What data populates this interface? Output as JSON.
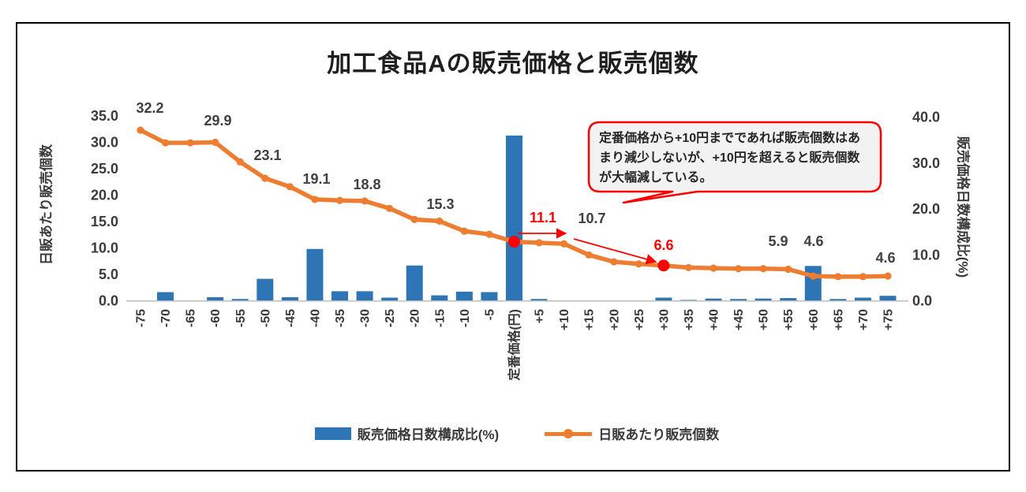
{
  "title": "加工食品Aの販売価格と販売個数",
  "left_axis": {
    "title": "日販あたり販売個数",
    "ticks": [
      "35.0",
      "30.0",
      "25.0",
      "20.0",
      "15.0",
      "10.0",
      "5.0",
      "0.0"
    ]
  },
  "right_axis": {
    "title": "販売価格日数構成比(%)",
    "ticks": [
      "40.0",
      "30.0",
      "20.0",
      "10.0",
      "0.0"
    ]
  },
  "legend": [
    {
      "label": "販売価格日数構成比(%)",
      "type": "bar",
      "color": "#2E75B6"
    },
    {
      "label": "日販あたり販売個数",
      "type": "line",
      "color": "#ED7D31"
    }
  ],
  "annotation": {
    "text": "定番価格から+10円までであれば販売個数はあまり減少しないが、+10円を超えると販売個数が大幅減している。",
    "border_color": "#FF0000",
    "fill": "#F2F2F2"
  },
  "colors": {
    "bar": "#2E75B6",
    "line": "#ED7D31",
    "highlight": "#FF0000",
    "label": "#404040",
    "axis_line": "#BFBFBF"
  },
  "chart_data": {
    "type": "combo",
    "categories": [
      "-75",
      "-70",
      "-65",
      "-60",
      "-55",
      "-50",
      "-45",
      "-40",
      "-35",
      "-30",
      "-25",
      "-20",
      "-15",
      "-10",
      "-5",
      "定番価格(円)",
      "+5",
      "+10",
      "+15",
      "+20",
      "+25",
      "+30",
      "+35",
      "+40",
      "+45",
      "+50",
      "+55",
      "+60",
      "+65",
      "+70",
      "+75"
    ],
    "series": [
      {
        "name": "販売価格日数構成比(%)",
        "type": "bar",
        "axis": "right",
        "color": "#2E75B6",
        "values": [
          0,
          1.8,
          0,
          0.7,
          0.3,
          4.7,
          0.7,
          11.2,
          2.0,
          2.0,
          0.6,
          7.6,
          1.1,
          1.9,
          1.8,
          35.9,
          0.3,
          0,
          0,
          0,
          0,
          0.6,
          0.1,
          0.4,
          0.3,
          0.4,
          0.5,
          7.5,
          0.3,
          0.6,
          1.0
        ]
      },
      {
        "name": "日販あたり販売個数",
        "type": "line",
        "axis": "left",
        "color": "#ED7D31",
        "values": [
          32.2,
          29.8,
          29.8,
          29.9,
          26.2,
          23.1,
          21.5,
          19.1,
          18.9,
          18.8,
          17.4,
          15.3,
          15.0,
          13.1,
          12.5,
          11.1,
          10.9,
          10.7,
          8.6,
          7.3,
          6.9,
          6.6,
          6.2,
          6.1,
          6.0,
          6.0,
          5.9,
          4.6,
          4.5,
          4.5,
          4.6
        ]
      }
    ],
    "data_labels": [
      {
        "index": 0,
        "text": "32.2",
        "emphasis": false
      },
      {
        "index": 3,
        "text": "29.9",
        "emphasis": false
      },
      {
        "index": 5,
        "text": "23.1",
        "emphasis": false
      },
      {
        "index": 7,
        "text": "19.1",
        "emphasis": false
      },
      {
        "index": 9,
        "text": "18.8",
        "emphasis": false
      },
      {
        "index": 11,
        "text": "15.3",
        "emphasis": false
      },
      {
        "index": 15,
        "text": "11.1",
        "emphasis": true
      },
      {
        "index": 17,
        "text": "10.7",
        "emphasis": false
      },
      {
        "index": 21,
        "text": "6.6",
        "emphasis": true
      },
      {
        "index": 26,
        "text": "5.9",
        "emphasis": false
      },
      {
        "index": 27,
        "text": "4.6",
        "emphasis": false
      },
      {
        "index": 30,
        "text": "4.6",
        "emphasis": false
      }
    ],
    "highlight_point_indices": [
      15,
      21
    ],
    "left_ylim": [
      0,
      35
    ],
    "right_ylim": [
      0,
      40
    ],
    "grid": false,
    "legend_position": "bottom"
  }
}
